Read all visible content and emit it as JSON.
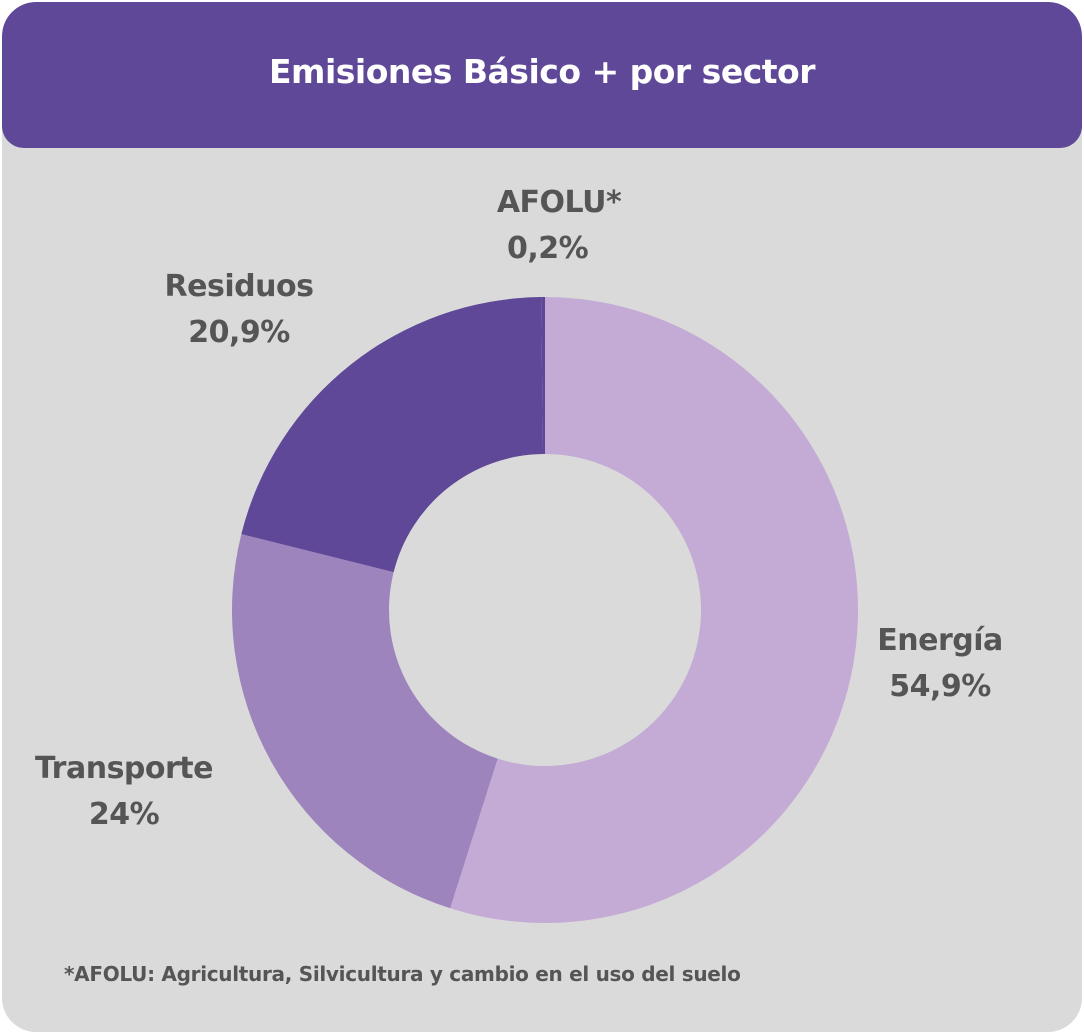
{
  "chart_data": {
    "type": "pie",
    "variant": "donut",
    "title": "Emisiones Básico + por sector",
    "slices": [
      {
        "label": "Energía",
        "value": 54.9,
        "value_label": "54,9%",
        "color": "#c4abd5"
      },
      {
        "label": "Transporte",
        "value": 24,
        "value_label": "24%",
        "color": "#9e84bd"
      },
      {
        "label": "Residuos",
        "value": 20.9,
        "value_label": "20,9%",
        "color": "#5e4897"
      },
      {
        "label": "AFOLU*",
        "value": 0.2,
        "value_label": "0,2%",
        "color": "#5e4897"
      }
    ],
    "footnote": "*AFOLU: Agricultura, Silvicultura y cambio en el uso del suelo"
  },
  "colors": {
    "header": "#5e4897",
    "card_background": "#dadada",
    "label_text": "#555555"
  }
}
